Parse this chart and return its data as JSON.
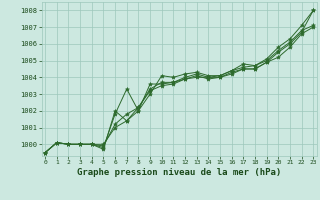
{
  "x": [
    0,
    1,
    2,
    3,
    4,
    5,
    6,
    7,
    8,
    9,
    10,
    11,
    12,
    13,
    14,
    15,
    16,
    17,
    18,
    19,
    20,
    21,
    22,
    23
  ],
  "series": [
    [
      999.5,
      1000.1,
      1000.0,
      1000.0,
      1000.0,
      1000.0,
      1001.0,
      1001.4,
      1002.0,
      1003.0,
      1004.1,
      1004.0,
      1004.2,
      1004.3,
      1004.1,
      1004.1,
      1004.4,
      1004.8,
      1004.7,
      1005.1,
      1005.8,
      1006.3,
      1007.1,
      1008.0
    ],
    [
      999.5,
      1000.1,
      1000.0,
      1000.0,
      1000.0,
      999.9,
      1001.2,
      1001.8,
      1002.2,
      1003.3,
      1003.7,
      1003.7,
      1004.0,
      1004.2,
      1004.0,
      1004.1,
      1004.4,
      1004.6,
      1004.7,
      1005.0,
      1005.6,
      1006.1,
      1006.8,
      1007.1
    ],
    [
      999.5,
      1000.1,
      1000.0,
      1000.0,
      1000.0,
      999.8,
      1001.8,
      1003.3,
      1002.0,
      1003.6,
      1003.6,
      1003.7,
      1003.9,
      1004.0,
      1004.0,
      1004.0,
      1004.3,
      1004.5,
      1004.5,
      1004.9,
      1005.5,
      1006.0,
      1006.7,
      1008.0
    ],
    [
      999.5,
      1000.1,
      1000.0,
      1000.0,
      1000.0,
      999.7,
      1002.0,
      1001.4,
      1002.2,
      1003.2,
      1003.5,
      1003.6,
      1003.9,
      1004.1,
      1003.9,
      1004.0,
      1004.2,
      1004.5,
      1004.5,
      1004.9,
      1005.2,
      1005.8,
      1006.6,
      1007.0
    ]
  ],
  "line_color": "#2d6a2d",
  "marker_color": "#2d6a2d",
  "bg_color": "#cce8e0",
  "grid_color": "#9ec8bc",
  "text_color": "#1a4a1a",
  "xlabel": "Graphe pression niveau de la mer (hPa)",
  "ylim": [
    999.3,
    1008.5
  ],
  "yticks": [
    1000,
    1001,
    1002,
    1003,
    1004,
    1005,
    1006,
    1007,
    1008
  ],
  "xticks": [
    0,
    1,
    2,
    3,
    4,
    5,
    6,
    7,
    8,
    9,
    10,
    11,
    12,
    13,
    14,
    15,
    16,
    17,
    18,
    19,
    20,
    21,
    22,
    23
  ]
}
